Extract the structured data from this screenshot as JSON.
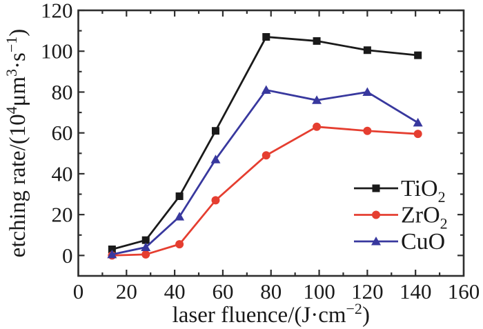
{
  "chart_data": {
    "type": "line",
    "title": "",
    "xlabel": "laser fluence/(J·cm⁻²)",
    "ylabel": "etching rate/(10⁴μm³·s⁻¹)",
    "xlabel_parts": [
      {
        "t": "laser fluence/(J·cm"
      },
      {
        "t": "−2",
        "sup": true
      },
      {
        "t": ")"
      }
    ],
    "ylabel_parts": [
      {
        "t": "etching rate/(10"
      },
      {
        "t": "4",
        "sup": true
      },
      {
        "t": "μm"
      },
      {
        "t": "3",
        "sup": true
      },
      {
        "t": "·s"
      },
      {
        "t": "−1",
        "sup": true
      },
      {
        "t": ")"
      }
    ],
    "x": [
      14,
      28,
      42,
      57,
      78,
      99,
      120,
      141
    ],
    "series": [
      {
        "name": "TiO2",
        "name_parts": [
          {
            "t": "TiO"
          },
          {
            "t": "2",
            "sub": true
          }
        ],
        "color": "#1a1a1a",
        "marker": "square",
        "values": [
          3,
          7.5,
          29,
          61,
          107,
          105,
          100.5,
          98
        ]
      },
      {
        "name": "ZrO2",
        "name_parts": [
          {
            "t": "ZrO"
          },
          {
            "t": "2",
            "sub": true
          }
        ],
        "color": "#e53e30",
        "marker": "circle",
        "values": [
          0,
          0.5,
          5.5,
          27,
          49,
          63,
          61,
          59.5
        ]
      },
      {
        "name": "CuO",
        "name_parts": [
          {
            "t": "CuO"
          }
        ],
        "color": "#38389e",
        "marker": "triangle",
        "values": [
          0.5,
          4,
          19,
          47,
          81,
          76,
          80,
          65
        ]
      }
    ],
    "xlim": [
      0,
      160
    ],
    "ylim": [
      -10,
      120
    ],
    "x_ticks_major": [
      0,
      20,
      40,
      60,
      80,
      100,
      120,
      140,
      160
    ],
    "x_tick_minor_step": 10,
    "y_ticks_major": [
      0,
      20,
      40,
      60,
      80,
      100,
      120
    ],
    "y_tick_minor_step": 10,
    "grid": false,
    "legend_position": "inside-lower-right",
    "tick_direction": "in",
    "axis_color": "#2e2e2e",
    "background_color": "#ffffff"
  }
}
